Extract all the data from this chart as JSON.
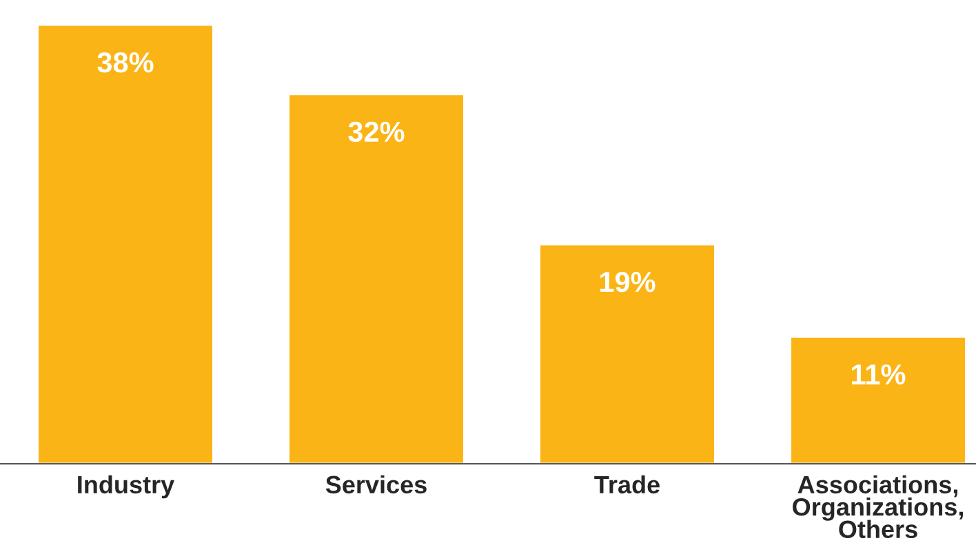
{
  "chart_data": {
    "type": "bar",
    "categories": [
      "Industry",
      "Services",
      "Trade",
      "Associations,\nOrganizations,\nOthers"
    ],
    "values": [
      38,
      32,
      19,
      11
    ],
    "value_labels": [
      "38%",
      "32%",
      "19%",
      "11%"
    ],
    "color": "#fbb416",
    "grid": false,
    "legend": false
  }
}
